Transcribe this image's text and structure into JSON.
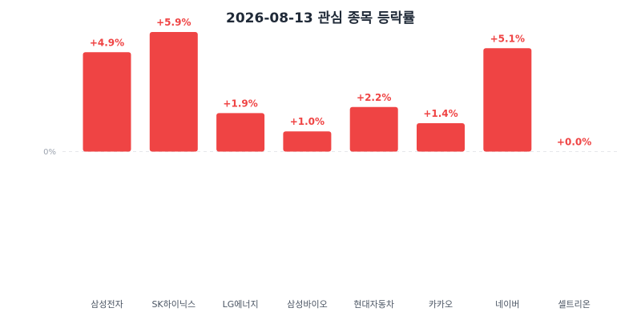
{
  "chart_data": {
    "type": "bar",
    "title": "2026-08-13 관심 종목 등락률",
    "categories": [
      "삼성전자",
      "SK하이닉스",
      "LG에너지",
      "삼성바이오",
      "현대자동차",
      "카카오",
      "네이버",
      "셀트리온"
    ],
    "values": [
      4.9,
      5.9,
      1.9,
      1.0,
      2.2,
      1.4,
      5.1,
      0.0
    ],
    "value_labels": [
      "+4.9%",
      "+5.9%",
      "+1.9%",
      "+1.0%",
      "+2.2%",
      "+1.4%",
      "+5.1%",
      "+0.0%"
    ],
    "zero_tick_label": "0%",
    "xlabel": "",
    "ylabel": "",
    "ylim": [
      -5.9,
      5.9
    ],
    "grid": false,
    "colors": {
      "positive": "#ef4444",
      "zero_line": "#e5e7eb"
    }
  }
}
